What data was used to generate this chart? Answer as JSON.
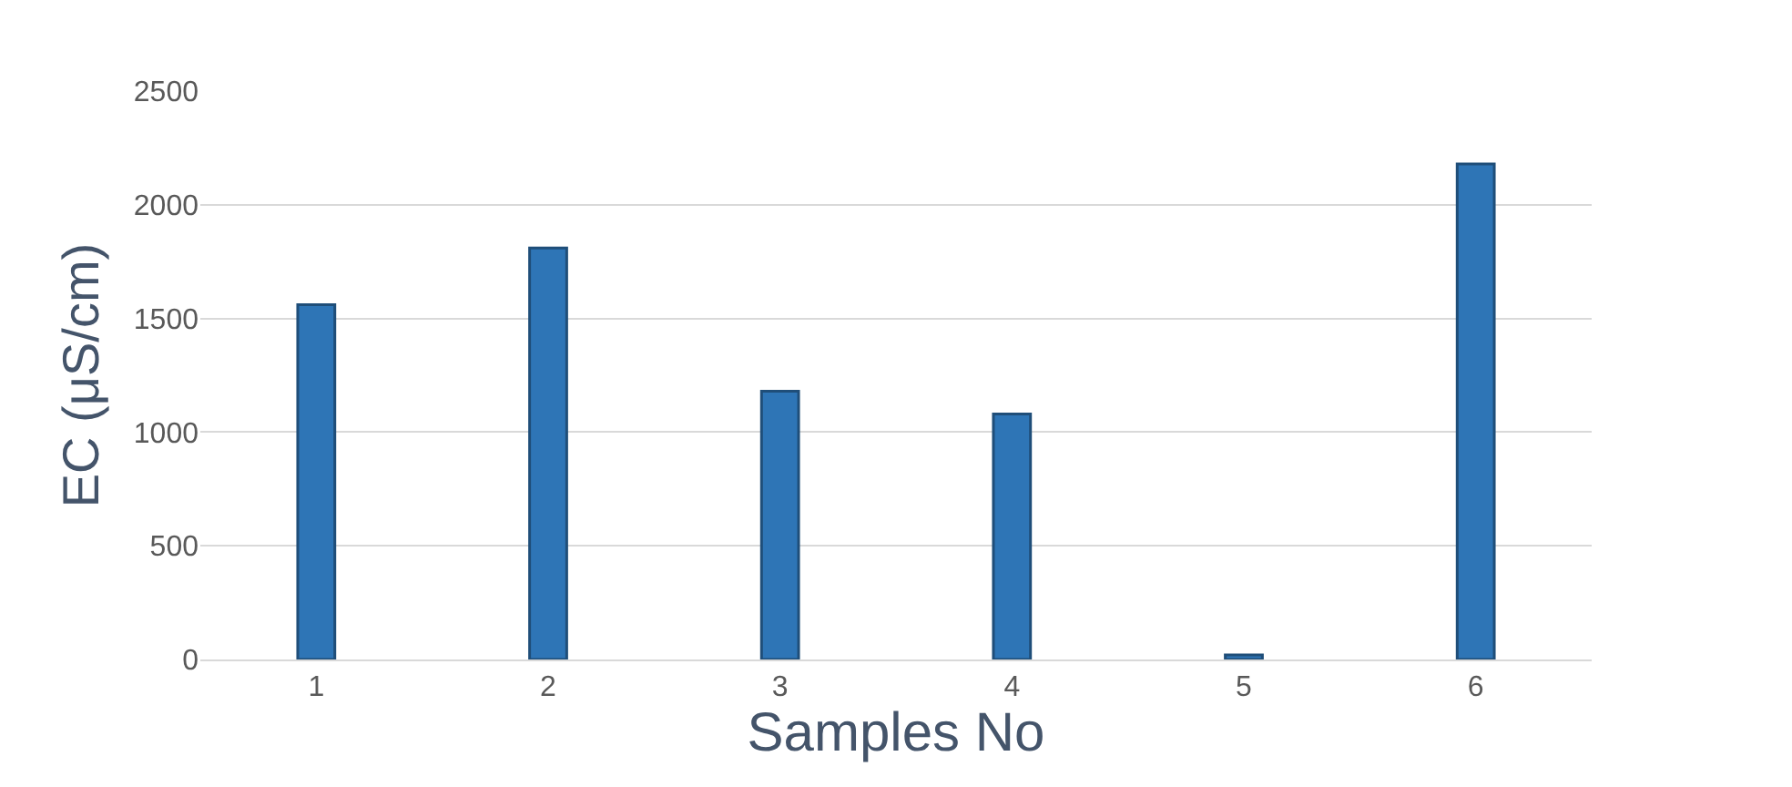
{
  "chart_data": {
    "type": "bar",
    "xlabel": "Samples No",
    "ylabel": "EC (μS/cm)",
    "categories": [
      "1",
      "2",
      "3",
      "4",
      "5",
      "6"
    ],
    "series": [
      {
        "color": "#2e75b6",
        "values": [
          1560,
          1810,
          1180,
          1080,
          20,
          2180
        ]
      }
    ],
    "ylim": [
      0,
      2500
    ],
    "yticks": [
      0,
      500,
      1000,
      1500,
      2000,
      2500
    ],
    "grid": "y",
    "legend": false
  }
}
